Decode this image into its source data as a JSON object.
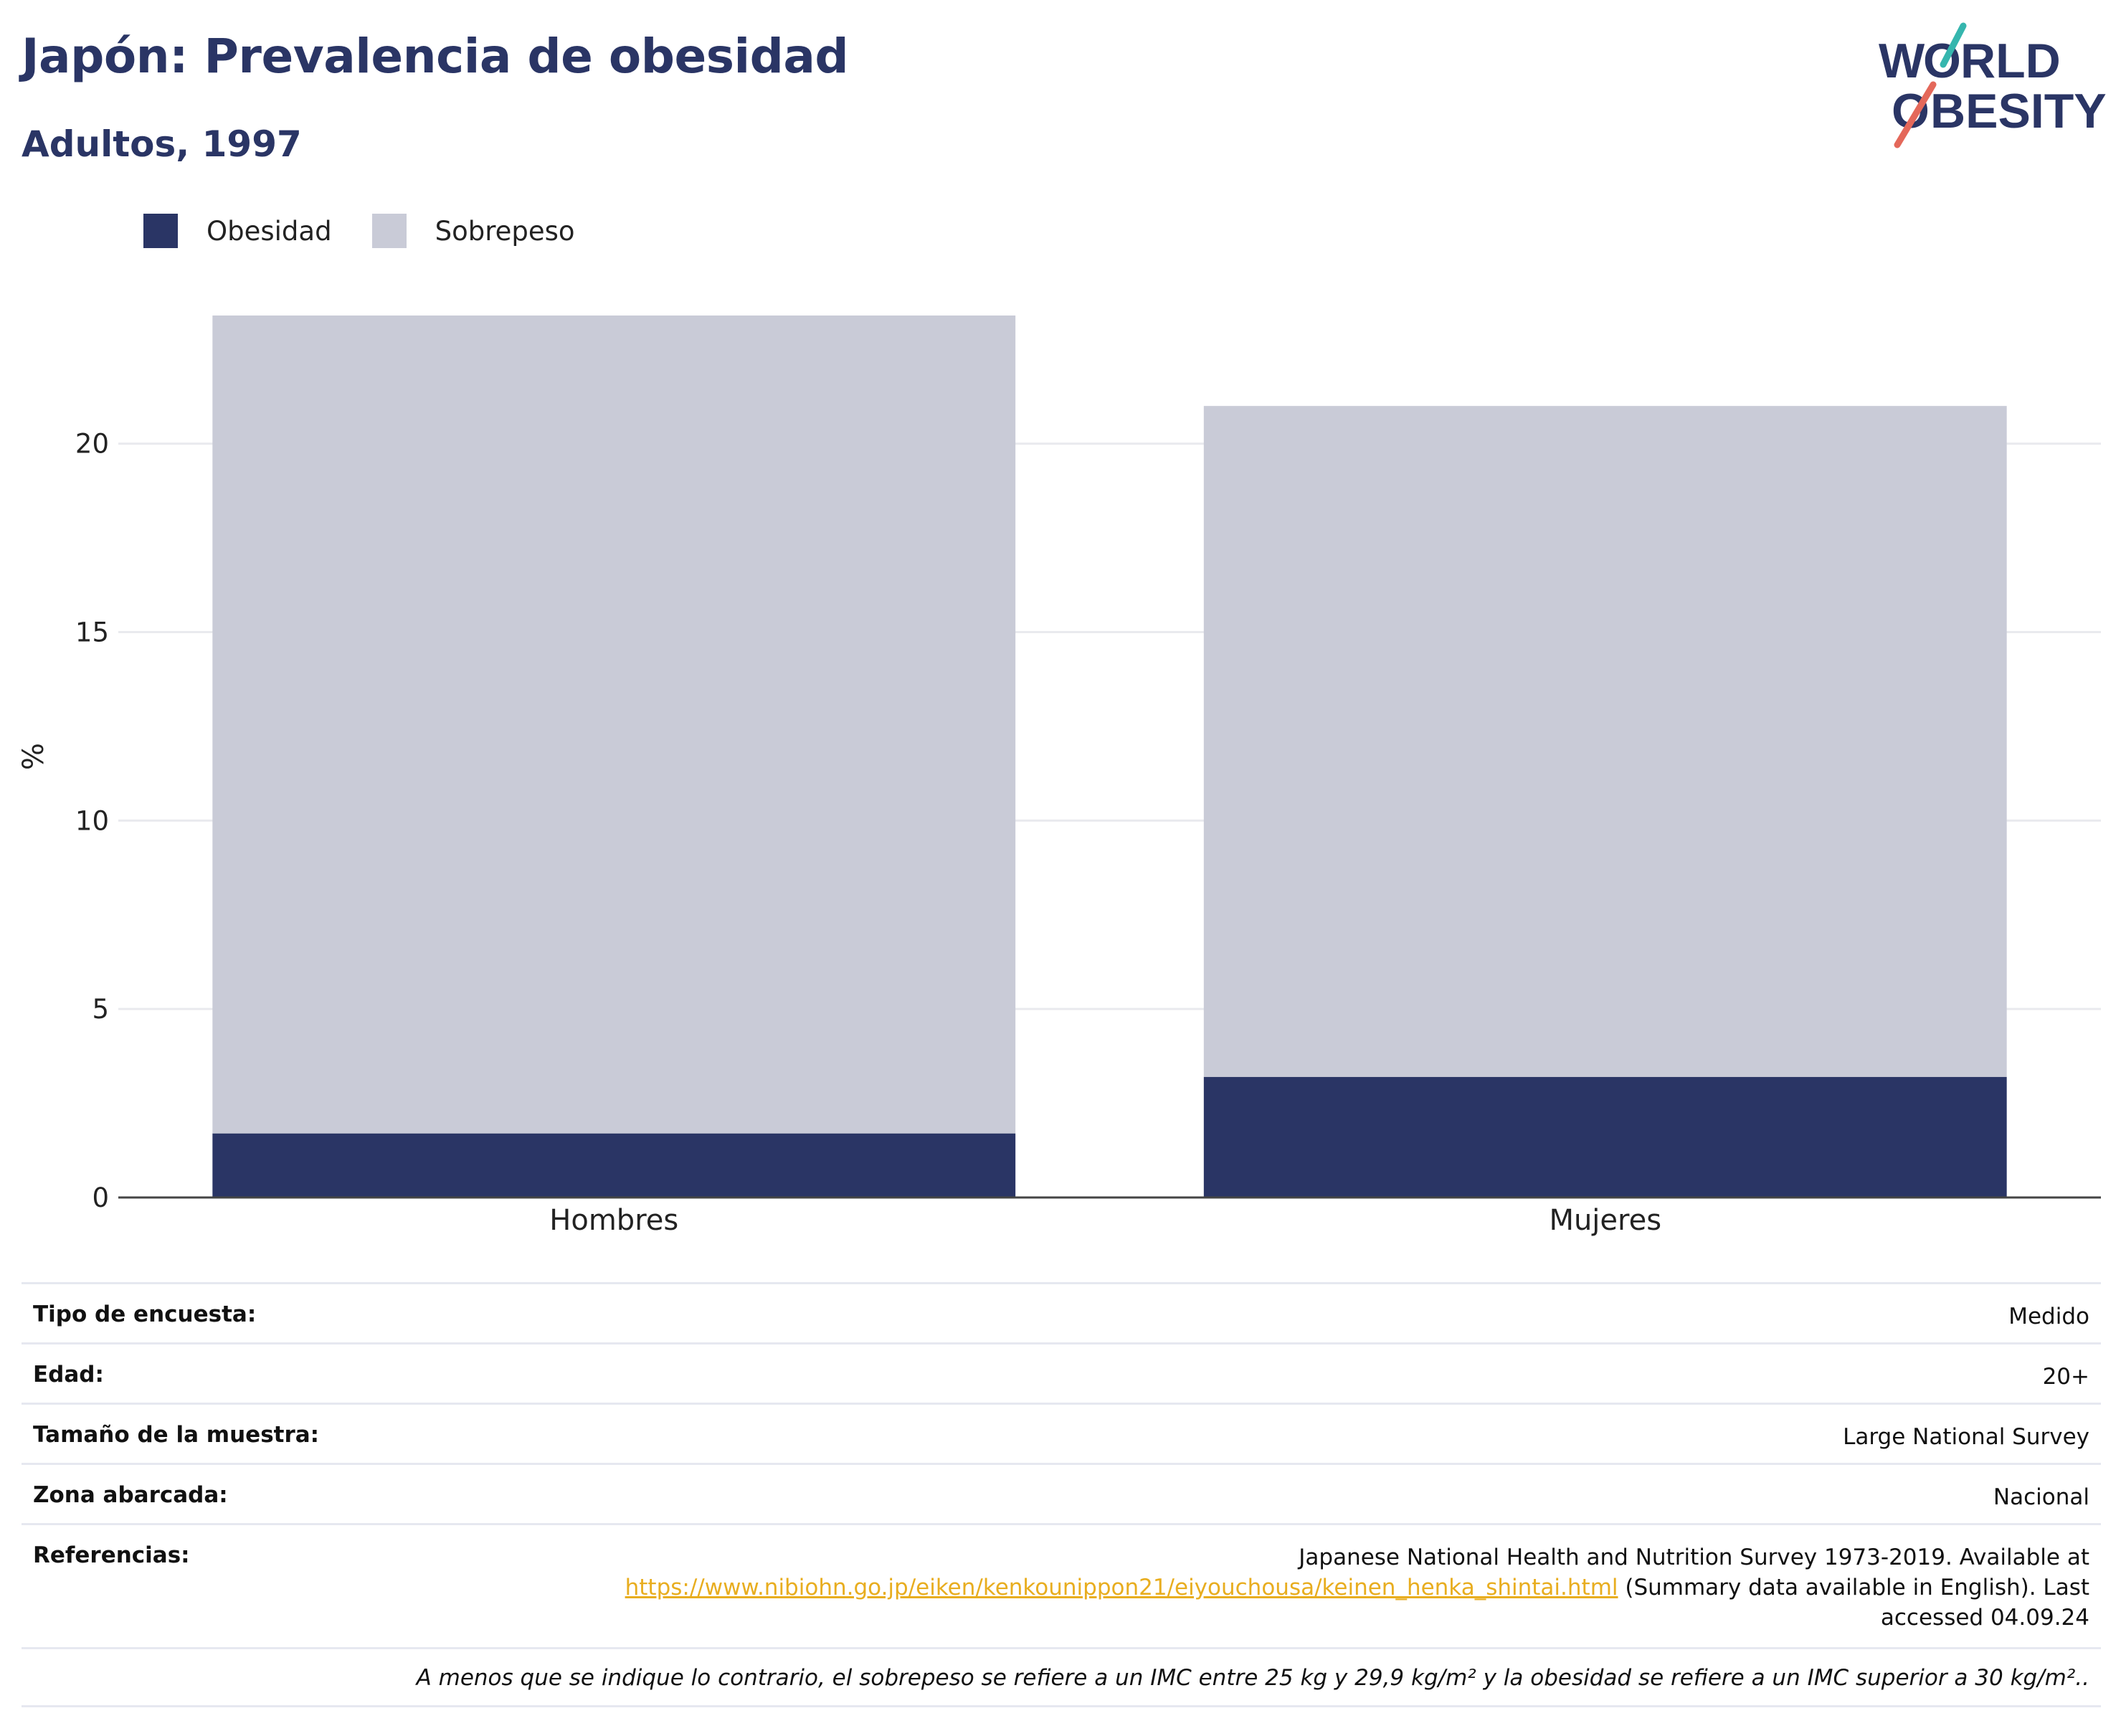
{
  "header": {
    "title": "Japón: Prevalencia de obesidad",
    "subtitle": "Adultos, 1997"
  },
  "logo": {
    "line1": "WORLD",
    "line2": "OBESITY",
    "color": "#2a3565",
    "accent_teal": "#35b6ae",
    "accent_coral": "#e4685a"
  },
  "legend": [
    {
      "label": "Obesidad",
      "color": "#2a3565"
    },
    {
      "label": "Sobrepeso",
      "color": "#c9cbd7"
    }
  ],
  "chart_data": {
    "type": "bar",
    "stacked": true,
    "categories": [
      "Hombres",
      "Mujeres"
    ],
    "series": [
      {
        "name": "Obesidad",
        "color": "#2a3565",
        "values": [
          1.7,
          3.2
        ]
      },
      {
        "name": "Sobrepeso",
        "color": "#c9cbd7",
        "values": [
          21.7,
          17.8
        ]
      }
    ],
    "ylabel": "%",
    "yticks": [
      0,
      5,
      10,
      15,
      20
    ],
    "ylim": [
      0,
      23.4
    ],
    "grid": true,
    "legend_position": "top-left"
  },
  "info": {
    "rows": [
      {
        "key": "Tipo de encuesta:",
        "value": "Medido"
      },
      {
        "key": "Edad:",
        "value": "20+"
      },
      {
        "key": "Tamaño de la muestra:",
        "value": "Large National Survey"
      },
      {
        "key": "Zona abarcada:",
        "value": "Nacional"
      }
    ],
    "references": {
      "key": "Referencias:",
      "text_before": "Japanese National Health and Nutrition Survey 1973-2019. Available at",
      "link": "https://www.nibiohn.go.jp/eiken/kenkounippon21/eiyouchousa/keinen_henka_shintai.html",
      "text_after": " (Summary data available in English). Last",
      "text_end": "accessed 04.09.24"
    },
    "note": "A menos que se indique lo contrario, el sobrepeso se refiere a un IMC entre 25 kg y 29,9 kg/m² y la obesidad se refiere a un IMC superior a 30 kg/m².."
  }
}
